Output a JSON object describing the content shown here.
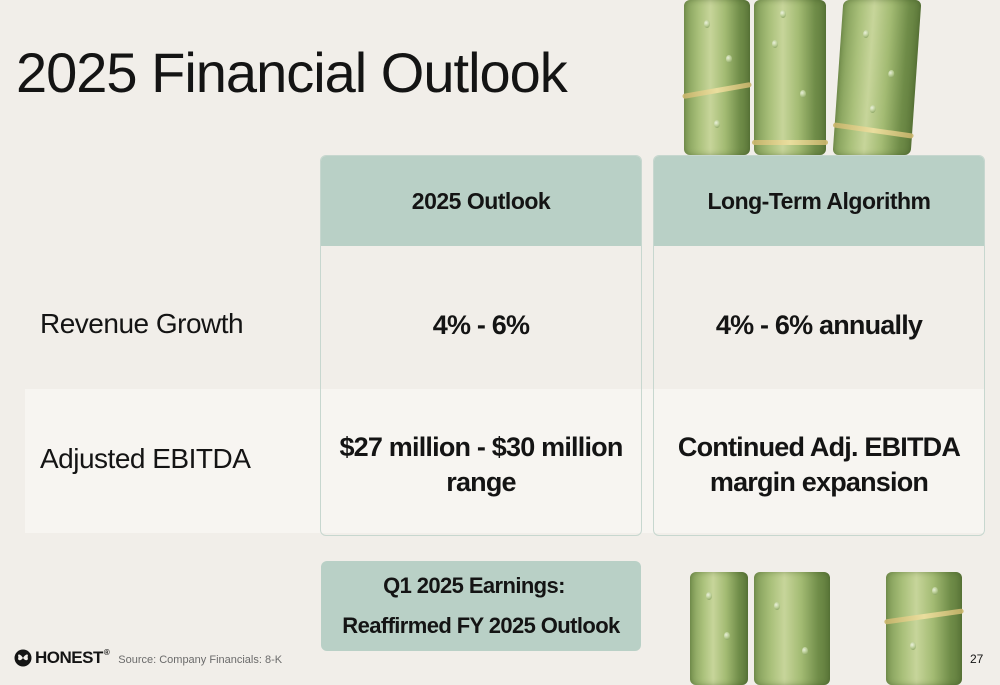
{
  "slide": {
    "title": "2025 Financial Outlook",
    "page_number": "27"
  },
  "table": {
    "columns": [
      {
        "header": "2025 Outlook"
      },
      {
        "header": "Long-Term Algorithm"
      }
    ],
    "rows": [
      {
        "label": "Revenue Growth",
        "values": [
          "4% - 6%",
          "4% - 6% annually"
        ]
      },
      {
        "label": "Adjusted EBITDA",
        "values": [
          "$27 million - $30 million range",
          "Continued Adj. EBITDA margin expansion"
        ]
      }
    ]
  },
  "callout": {
    "line1": "Q1 2025 Earnings:",
    "line2": "Reaffirmed  FY 2025 Outlook"
  },
  "footer": {
    "logo_text": "HONEST",
    "logo_tm": "®",
    "source": "Source: Company Financials: 8-K"
  },
  "colors": {
    "background": "#f1eee9",
    "header_fill": "#b9d0c6",
    "row_band": "#f7f5f1"
  }
}
